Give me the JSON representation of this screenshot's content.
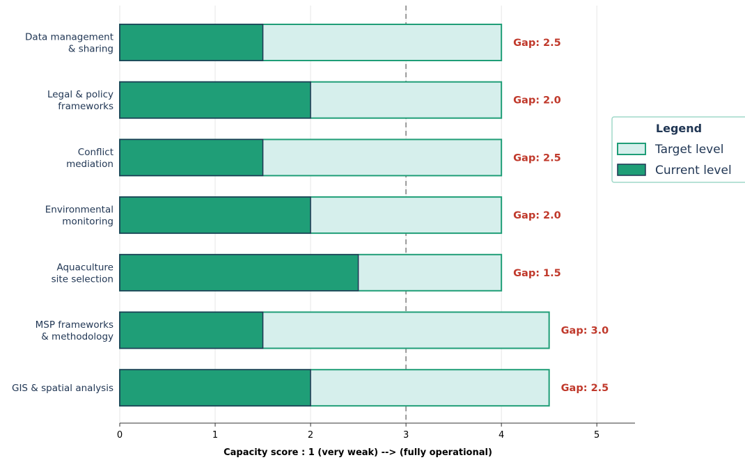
{
  "chart_data": {
    "type": "bar",
    "orientation": "horizontal",
    "categories": [
      "Data management\n& sharing",
      "Legal & policy\nframeworks",
      "Conflict\nmediation",
      "Environmental\nmonitoring",
      "Aquaculture\nsite selection",
      "MSP frameworks\n& methodology",
      "GIS & spatial analysis"
    ],
    "series": [
      {
        "name": "Target level",
        "values": [
          4.0,
          4.0,
          4.0,
          4.0,
          4.0,
          4.5,
          4.5
        ],
        "color": "#d6efec",
        "edge_color": "#1f9e77"
      },
      {
        "name": "Current level",
        "values": [
          1.5,
          2.0,
          1.5,
          2.0,
          2.5,
          1.5,
          2.0
        ],
        "color": "#1f9e77",
        "edge_color": "#1f3553"
      }
    ],
    "gap_labels": [
      "Gap: 2.5",
      "Gap: 2.0",
      "Gap: 2.5",
      "Gap: 2.0",
      "Gap: 1.5",
      "Gap: 3.0",
      "Gap: 2.5"
    ],
    "gap_color": "#c0392b",
    "reference_line": {
      "x": 3,
      "style": "dashed",
      "color": "#999999"
    },
    "xlabel": "Capacity score : 1 (very weak) --> (fully operational)",
    "ylabel": "",
    "xlim": [
      0,
      5.4
    ],
    "xticks": [
      0,
      1,
      2,
      3,
      4,
      5
    ],
    "grid": "x",
    "legend": {
      "title": "Legend",
      "placement": "right",
      "entries": [
        "Target level",
        "Current level"
      ]
    }
  }
}
